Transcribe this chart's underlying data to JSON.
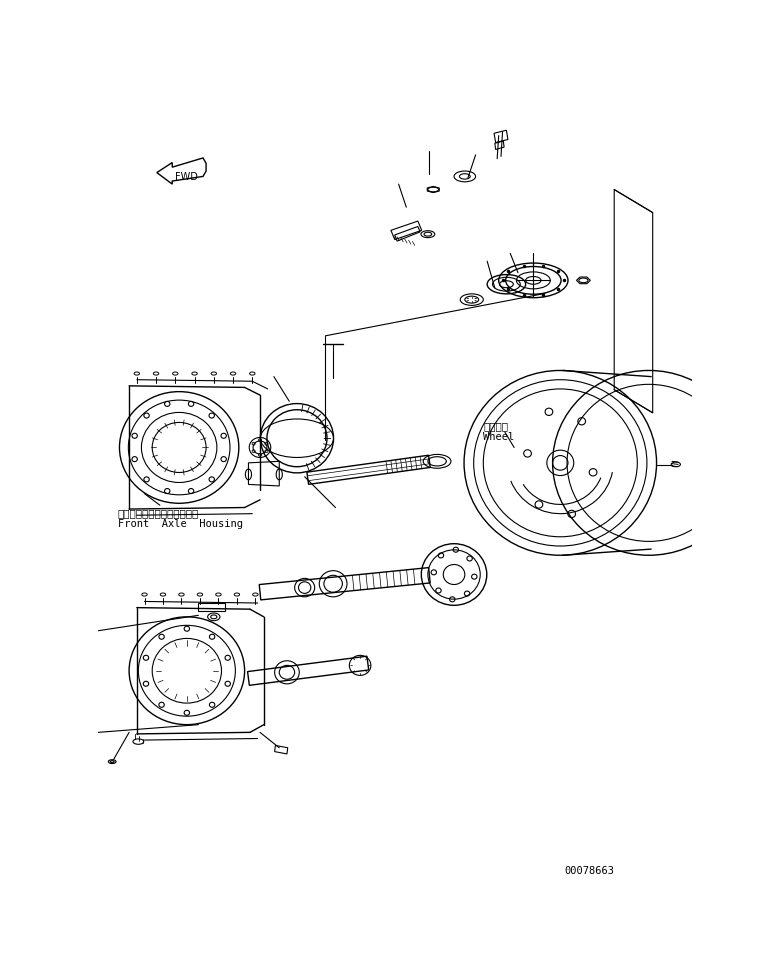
{
  "bg_color": "#ffffff",
  "line_color": "#000000",
  "fig_width": 7.71,
  "fig_height": 9.78,
  "dpi": 100,
  "part_id": "00078663",
  "label_front_axle_jp": "フロントアクスルハウジング",
  "label_front_axle_en": "Front  Axle  Housing",
  "label_wheel_jp": "ホイール",
  "label_wheel_en": "Wheel",
  "fwd_label": "FWD"
}
